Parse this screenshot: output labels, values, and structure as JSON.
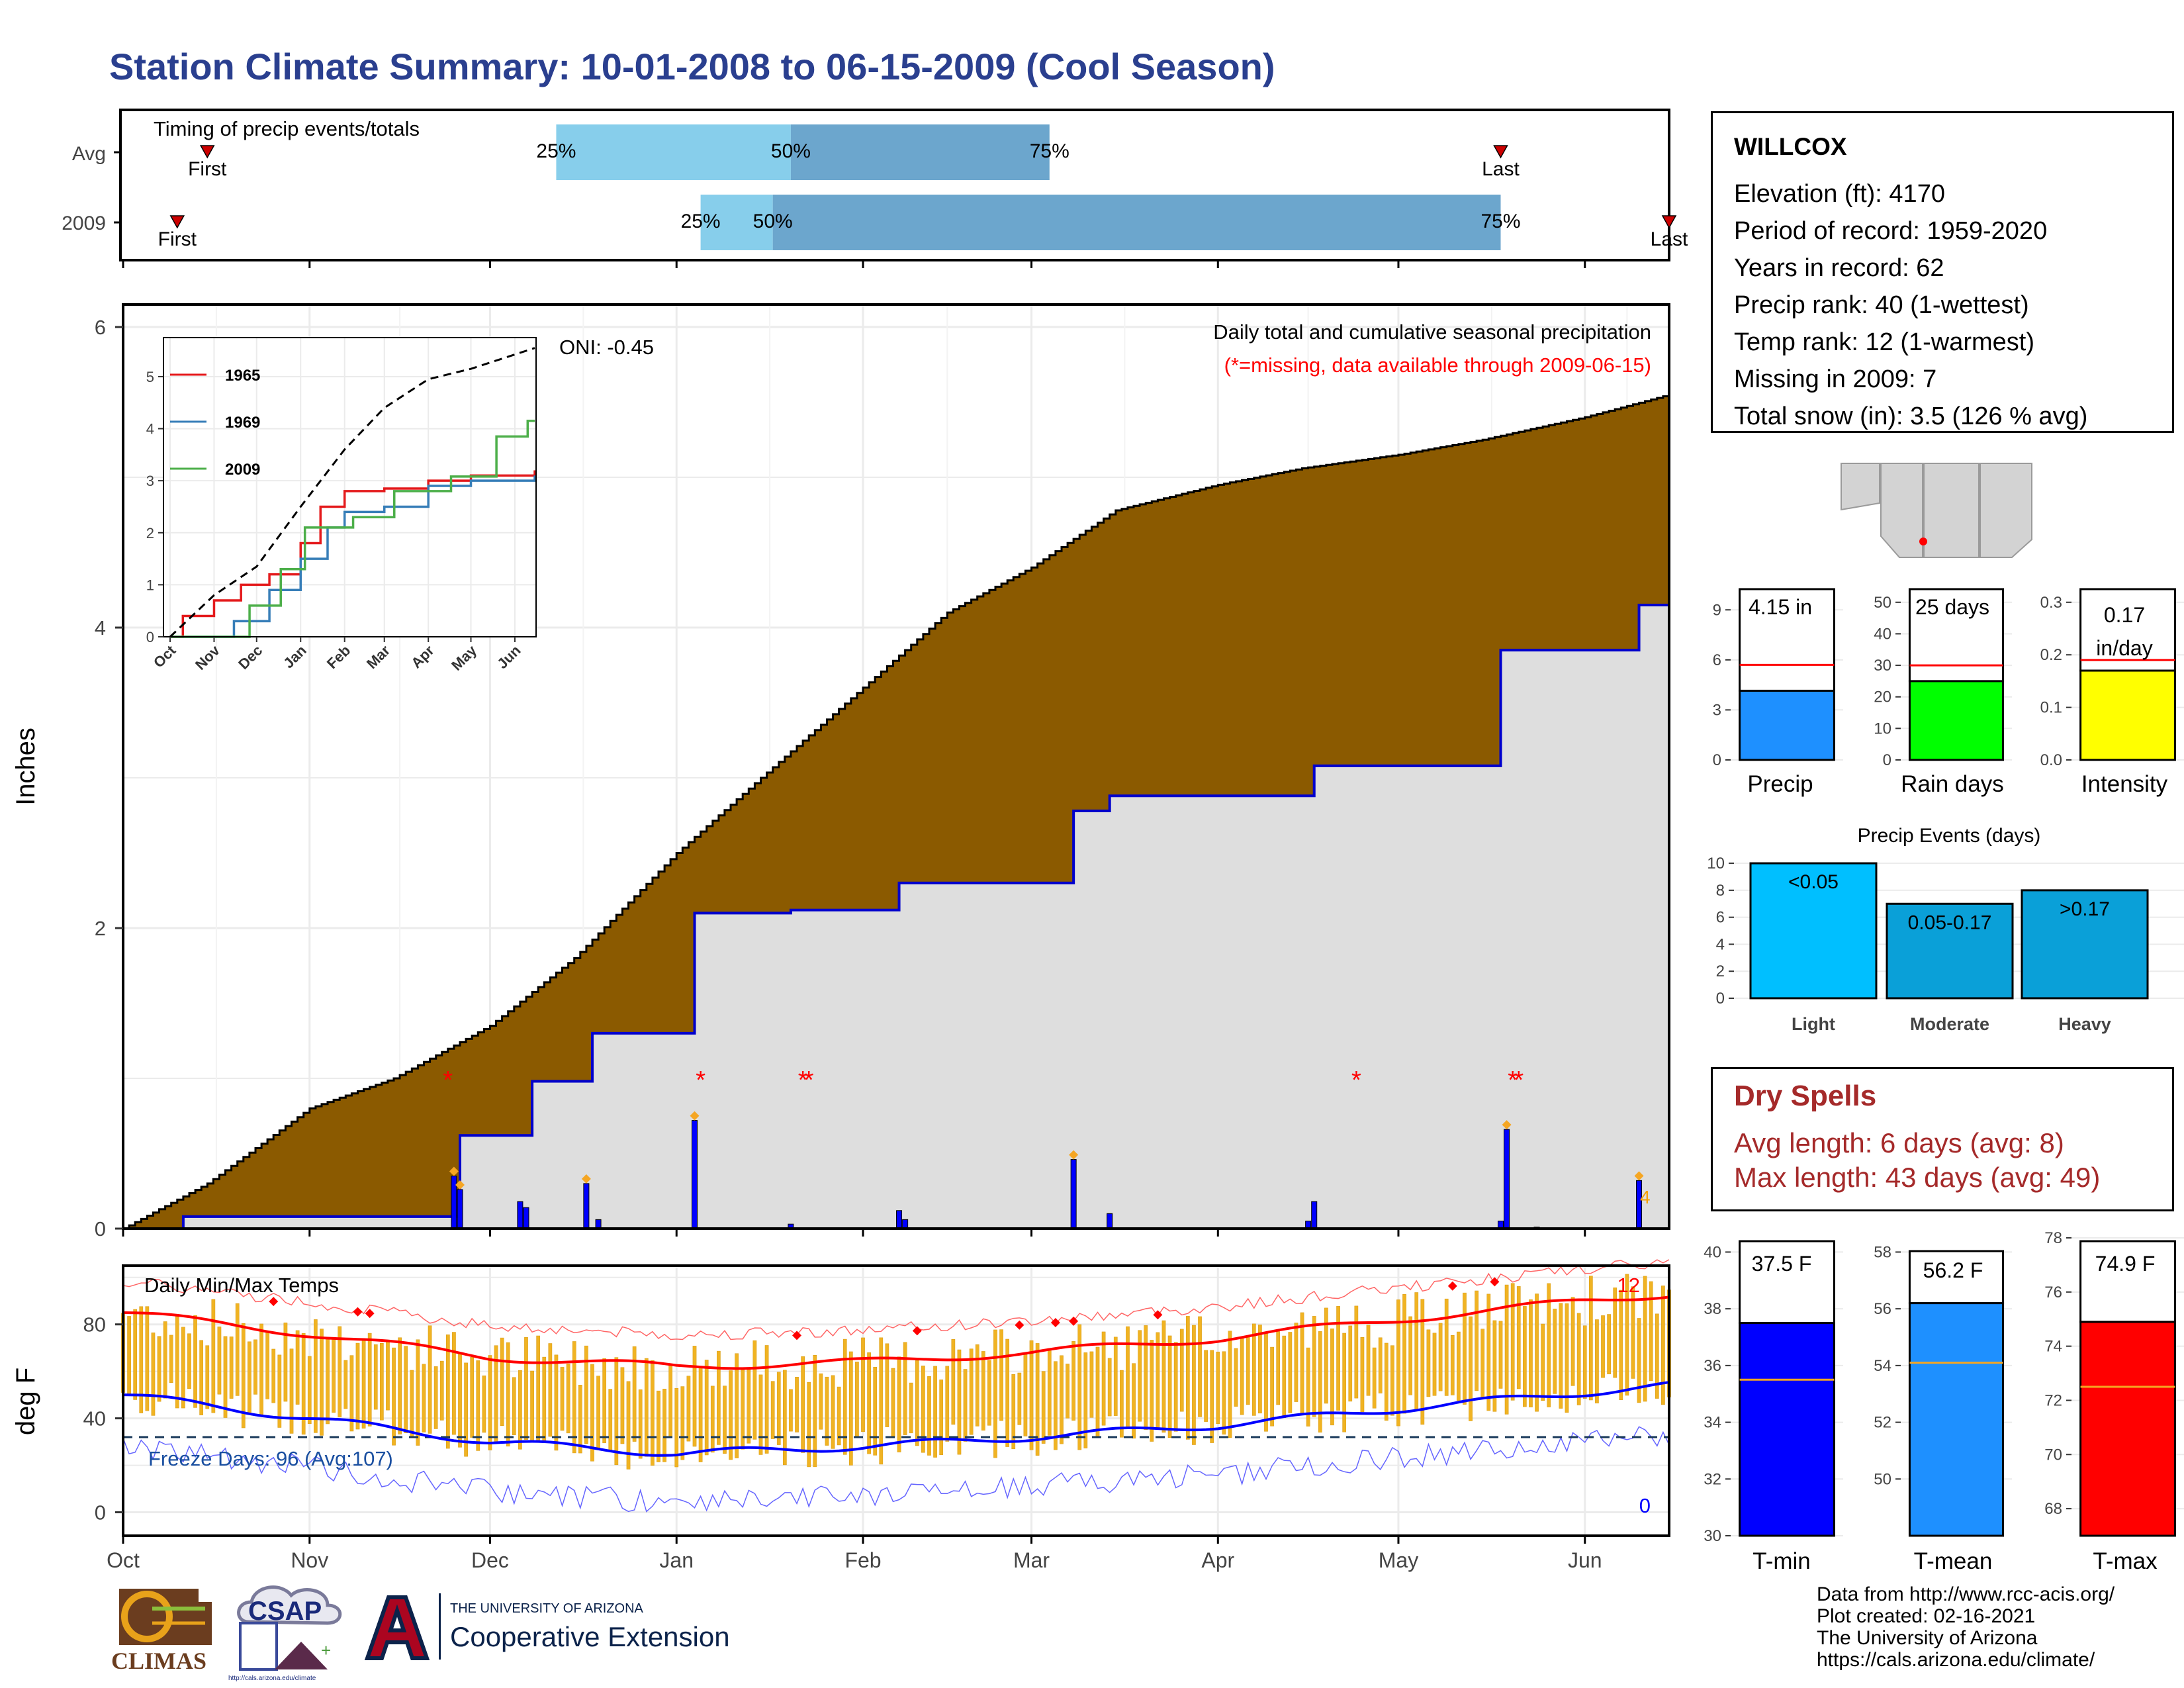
{
  "title": "Station Climate Summary: 10-01-2008 to 06-15-2009 (Cool Season)",
  "station": {
    "name": "WILLCOX",
    "lines": [
      "Elevation (ft): 4170",
      "Period of record: 1959-2020",
      "Years in record: 62",
      "Precip rank: 40 (1-wettest)",
      "Temp rank: 12 (1-warmest)",
      "Missing in 2009: 7",
      "Total snow (in): 3.5 (126 % avg)"
    ]
  },
  "timing": {
    "label": "Timing of precip events/totals",
    "rows": [
      "Avg",
      "2009"
    ],
    "first_label": "First",
    "last_label": "Last",
    "pct_labels": [
      "25%",
      "50%",
      "75%"
    ],
    "avg": {
      "first": "2008-10-15",
      "p25": "2008-12-12",
      "p50": "2009-01-20",
      "p75": "2009-03-04",
      "last": "2009-05-18"
    },
    "y2009": {
      "first": "2008-10-10",
      "p25": "2009-01-05",
      "p50": "2009-01-17",
      "p75": "2009-05-18",
      "last": "2009-06-15"
    }
  },
  "precip_panel": {
    "ylabel": "Inches",
    "title": "Daily total and cumulative seasonal precipitation",
    "note": "(*=missing, data available through 2009-06-15)",
    "oni": "ONI: -0.45",
    "end_label": "4"
  },
  "temp_panel": {
    "ylabel": "deg F",
    "title": "Daily Min/Max Temps",
    "freeze": "Freeze Days: 96 (Avg:107)",
    "max_count": "12",
    "min_count": "0"
  },
  "month_labels": [
    "Oct",
    "Nov",
    "Dec",
    "Jan",
    "Feb",
    "Mar",
    "Apr",
    "May",
    "Jun"
  ],
  "inset": {
    "legend": [
      "1965",
      "1969",
      "2009"
    ],
    "months": [
      "Oct",
      "Nov",
      "Dec",
      "Jan",
      "Feb",
      "Mar",
      "Apr",
      "May",
      "Jun"
    ]
  },
  "bar_panels": {
    "precip": {
      "label": "Precip",
      "value_text": "4.15 in"
    },
    "raindays": {
      "label": "Rain days",
      "value_text": "25 days"
    },
    "intensity": {
      "label": "Intensity",
      "value_line1": "0.17",
      "value_line2": "in/day"
    }
  },
  "events": {
    "title": "Precip Events (days)"
  },
  "dry_spells": {
    "title": "Dry Spells",
    "avg": "Avg length: 6 days (avg: 8)",
    "max": "Max length: 43 days (avg: 49)"
  },
  "temp_bars": {
    "tmin": {
      "label": "T-min",
      "value_text": "37.5 F"
    },
    "tmean": {
      "label": "T-mean",
      "value_text": "56.2 F"
    },
    "tmax": {
      "label": "T-max",
      "value_text": "74.9 F"
    }
  },
  "credits": [
    "Data from http://www.rcc-acis.org/",
    "Plot created: 02-16-2021",
    "The University of Arizona",
    "https://cals.arizona.edu/climate/"
  ],
  "logos": {
    "climas": "CLIMAS",
    "csap": "CSAP",
    "csap_url": "http://cals.arizona.edu/climate",
    "ua_line1": "THE UNIVERSITY OF ARIZONA",
    "ua_line2": "Cooperative Extension"
  },
  "colors": {
    "title": "#2a3f8f",
    "cumulative_avg": "#8b5a00",
    "cumulative_obs": "#0000cc",
    "timing_light": "#87ceeb",
    "timing_dark": "#6ca6cd",
    "precip_bar": "#1e90ff",
    "raindays_bar": "#00ff00",
    "intensity_bar": "#ffff00",
    "events_bar": "#00bfff",
    "tmin_bar": "#0000ff",
    "tmean_bar": "#1e90ff",
    "tmax_bar": "#ff0000",
    "dry_spells": "#a52a2a"
  },
  "chart_data": [
    {
      "type": "line",
      "name": "cumulative precipitation",
      "ylim": [
        0,
        6
      ],
      "avg_cumulative": [
        [
          "2008-10-01",
          0.0
        ],
        [
          "2008-10-15",
          0.3
        ],
        [
          "2008-11-01",
          0.8
        ],
        [
          "2008-11-15",
          1.0
        ],
        [
          "2008-12-01",
          1.35
        ],
        [
          "2008-12-15",
          1.8
        ],
        [
          "2009-01-01",
          2.5
        ],
        [
          "2009-01-15",
          3.0
        ],
        [
          "2009-02-01",
          3.6
        ],
        [
          "2009-02-15",
          4.1
        ],
        [
          "2009-03-01",
          4.4
        ],
        [
          "2009-03-15",
          4.78
        ],
        [
          "2009-04-01",
          4.95
        ],
        [
          "2009-04-15",
          5.06
        ],
        [
          "2009-05-01",
          5.15
        ],
        [
          "2009-05-15",
          5.25
        ],
        [
          "2009-06-01",
          5.4
        ],
        [
          "2009-06-15",
          5.55
        ]
      ],
      "obs_cumulative": [
        [
          "2008-10-01",
          0.0
        ],
        [
          "2008-10-11",
          0.08
        ],
        [
          "2008-11-25",
          0.08
        ],
        [
          "2008-11-26",
          0.62
        ],
        [
          "2008-12-08",
          0.98
        ],
        [
          "2008-12-18",
          1.3
        ],
        [
          "2009-01-04",
          2.1
        ],
        [
          "2009-01-20",
          2.12
        ],
        [
          "2009-02-07",
          2.3
        ],
        [
          "2009-03-08",
          2.78
        ],
        [
          "2009-03-14",
          2.88
        ],
        [
          "2009-04-17",
          3.08
        ],
        [
          "2009-05-18",
          3.85
        ],
        [
          "2009-06-10",
          4.15
        ],
        [
          "2009-06-15",
          4.15
        ]
      ],
      "daily_precip": [
        [
          "2008-11-25",
          0.35
        ],
        [
          "2008-11-26",
          0.26
        ],
        [
          "2008-12-06",
          0.18
        ],
        [
          "2008-12-07",
          0.14
        ],
        [
          "2008-12-17",
          0.3
        ],
        [
          "2008-12-19",
          0.06
        ],
        [
          "2009-01-04",
          0.72
        ],
        [
          "2009-01-20",
          0.03
        ],
        [
          "2009-02-07",
          0.12
        ],
        [
          "2009-02-08",
          0.06
        ],
        [
          "2009-03-08",
          0.46
        ],
        [
          "2009-03-14",
          0.1
        ],
        [
          "2009-04-16",
          0.05
        ],
        [
          "2009-04-17",
          0.18
        ],
        [
          "2009-05-18",
          0.05
        ],
        [
          "2009-05-19",
          0.66
        ],
        [
          "2009-05-24",
          0.01
        ],
        [
          "2009-06-10",
          0.32
        ]
      ],
      "missing_dates": [
        "2008-11-24",
        "2009-01-05",
        "2009-01-22",
        "2009-01-23",
        "2009-04-24",
        "2009-05-20",
        "2009-05-21"
      ]
    },
    {
      "type": "line",
      "name": "daily temperatures",
      "ylim": [
        -10,
        105
      ],
      "ymax_avg": [
        [
          "2008-10-01",
          85
        ],
        [
          "2008-11-01",
          76
        ],
        [
          "2008-12-01",
          66
        ],
        [
          "2009-01-01",
          62
        ],
        [
          "2009-02-01",
          64
        ],
        [
          "2009-03-01",
          68
        ],
        [
          "2009-04-01",
          74
        ],
        [
          "2009-05-01",
          82
        ],
        [
          "2009-06-01",
          90
        ],
        [
          "2009-06-15",
          93
        ]
      ],
      "ymin_avg": [
        [
          "2008-10-01",
          50
        ],
        [
          "2008-11-01",
          40
        ],
        [
          "2008-12-01",
          30
        ],
        [
          "2009-01-01",
          25
        ],
        [
          "2009-02-01",
          28
        ],
        [
          "2009-03-01",
          32
        ],
        [
          "2009-04-01",
          37
        ],
        [
          "2009-05-01",
          44
        ],
        [
          "2009-06-01",
          51
        ],
        [
          "2009-06-15",
          54
        ]
      ],
      "freeze_line": 32
    },
    {
      "type": "bar",
      "categories": [
        "Precip"
      ],
      "values": [
        4.15
      ],
      "reference": 5.7,
      "ylim": [
        0,
        10.4
      ]
    },
    {
      "type": "bar",
      "categories": [
        "Rain days"
      ],
      "values": [
        25
      ],
      "reference": 30,
      "ylim": [
        0,
        55
      ]
    },
    {
      "type": "bar",
      "categories": [
        "Intensity"
      ],
      "values": [
        0.17
      ],
      "reference": 0.19,
      "ylim": [
        0,
        0.33
      ]
    },
    {
      "type": "bar",
      "categories": [
        "Light",
        "Moderate",
        "Heavy"
      ],
      "values": [
        10,
        7,
        8
      ],
      "labels": [
        "<0.05",
        "0.05-0.17",
        ">0.17"
      ],
      "ylim": [
        0,
        10.3
      ]
    },
    {
      "type": "bar",
      "categories": [
        "T-min"
      ],
      "values": [
        37.5
      ],
      "reference": 35.5,
      "ylim": [
        30,
        40.5
      ]
    },
    {
      "type": "bar",
      "categories": [
        "T-mean"
      ],
      "values": [
        56.2
      ],
      "reference": 54.1,
      "ylim": [
        48,
        58.5
      ]
    },
    {
      "type": "bar",
      "categories": [
        "T-max"
      ],
      "values": [
        74.9
      ],
      "reference": 72.5,
      "ylim": [
        67,
        78
      ]
    },
    {
      "type": "line",
      "name": "inset cumulative",
      "ylim": [
        0,
        5.5
      ],
      "series": [
        {
          "name": "1965",
          "color": "#e41a1c",
          "values": [
            [
              "2008-10-01",
              0
            ],
            [
              "2008-10-10",
              0.4
            ],
            [
              "2008-11-01",
              0.7
            ],
            [
              "2008-11-20",
              1.0
            ],
            [
              "2008-12-10",
              1.2
            ],
            [
              "2009-01-01",
              1.8
            ],
            [
              "2009-01-15",
              2.5
            ],
            [
              "2009-02-01",
              2.8
            ],
            [
              "2009-03-01",
              2.85
            ],
            [
              "2009-04-01",
              3.0
            ],
            [
              "2009-05-01",
              3.1
            ],
            [
              "2009-06-15",
              3.2
            ]
          ]
        },
        {
          "name": "1969",
          "color": "#377eb8",
          "values": [
            [
              "2008-10-01",
              0
            ],
            [
              "2008-11-15",
              0.3
            ],
            [
              "2008-12-10",
              0.9
            ],
            [
              "2009-01-01",
              1.5
            ],
            [
              "2009-01-20",
              2.1
            ],
            [
              "2009-02-01",
              2.4
            ],
            [
              "2009-03-01",
              2.5
            ],
            [
              "2009-04-01",
              2.9
            ],
            [
              "2009-05-01",
              3.0
            ],
            [
              "2009-06-15",
              3.1
            ]
          ]
        },
        {
          "name": "2009",
          "color": "#4daf4a",
          "values": [
            [
              "2008-10-01",
              0
            ],
            [
              "2008-11-26",
              0.6
            ],
            [
              "2008-12-18",
              1.3
            ],
            [
              "2009-01-04",
              2.1
            ],
            [
              "2009-02-07",
              2.3
            ],
            [
              "2009-03-08",
              2.8
            ],
            [
              "2009-04-17",
              3.08
            ],
            [
              "2009-05-19",
              3.85
            ],
            [
              "2009-06-10",
              4.15
            ],
            [
              "2009-06-15",
              4.15
            ]
          ]
        }
      ],
      "average": [
        [
          "2008-10-01",
          0
        ],
        [
          "2008-11-01",
          0.8
        ],
        [
          "2008-12-01",
          1.35
        ],
        [
          "2009-01-01",
          2.5
        ],
        [
          "2009-02-01",
          3.6
        ],
        [
          "2009-03-01",
          4.4
        ],
        [
          "2009-04-01",
          4.95
        ],
        [
          "2009-05-01",
          5.15
        ],
        [
          "2009-06-15",
          5.55
        ]
      ]
    }
  ]
}
